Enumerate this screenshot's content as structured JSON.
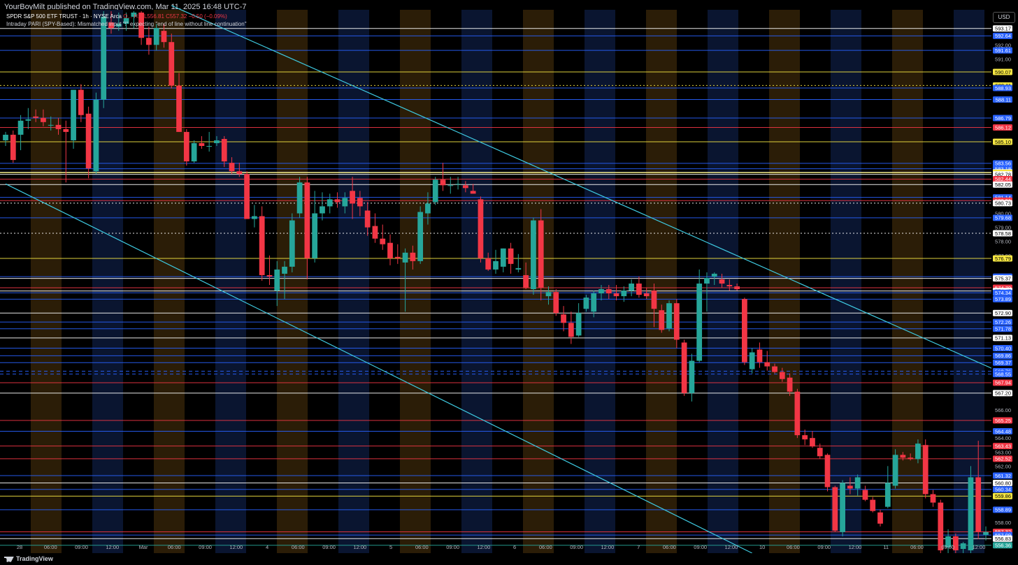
{
  "publisher_line": "YourBoyMilt published on TradingView.com, Mar 11, 2025 16:48 UTC-7",
  "legend": {
    "symbol": "SPDR S&P 500 ETF TRUST · 1h · NYSE Arca",
    "ohlc": "O... H... L556.81 C557.32 −0.50 (−0.09%)",
    "indicator": "Intraday PARI (SPY-Based): Mismatched input \"!\" expecting \"end of line without line continuation\""
  },
  "currency": "USD",
  "branding": "TradingView",
  "colors": {
    "up": "#26a69a",
    "down": "#f23645",
    "trendline": "#3ec9e0",
    "blue_level": "#2962ff",
    "red_level": "#f23645",
    "yellow_level": "#f5e642",
    "white_level": "#ffffff",
    "session_orange": "#2b1d07",
    "session_blue": "#0a1530",
    "axis_text": "#b2b5be"
  },
  "chart_data": {
    "type": "candlestick",
    "symbol": "SPY",
    "interval": "1h",
    "ylim": [
      555.8,
      594.5
    ],
    "x_labels": [
      "28",
      "06:00",
      "09:00",
      "12:00",
      "Mar",
      "06:00",
      "09:00",
      "12:00",
      "4",
      "06:00",
      "09:00",
      "12:00",
      "5",
      "06:00",
      "09:00",
      "12:00",
      "6",
      "06:00",
      "09:00",
      "12:00",
      "7",
      "06:00",
      "09:00",
      "12:00",
      "10",
      "06:00",
      "09:00",
      "12:00",
      "11",
      "06:00",
      "09:00",
      "12:00"
    ],
    "y_ticks": [
      592.0,
      591.0,
      581.0,
      580.0,
      579.0,
      578.0,
      577.0,
      573.0,
      566.0,
      564.0,
      563.0,
      562.0,
      558.0
    ],
    "levels": [
      {
        "price": 593.17,
        "label": "593.17",
        "color": "white"
      },
      {
        "price": 592.64,
        "label": "592.64",
        "color": "blue"
      },
      {
        "price": 591.61,
        "label": "591.61",
        "color": "blue"
      },
      {
        "price": 590.07,
        "label": "590.07",
        "color": "yellow"
      },
      {
        "price": 589.11,
        "label": "589.11",
        "color": "yellow",
        "style": "dotted"
      },
      {
        "price": 588.93,
        "label": "588.93",
        "color": "blue"
      },
      {
        "price": 588.11,
        "label": "588.11",
        "color": "blue"
      },
      {
        "price": 586.79,
        "label": "586.79",
        "color": "blue"
      },
      {
        "price": 586.12,
        "label": "586.12",
        "color": "red"
      },
      {
        "price": 585.1,
        "label": "585.10",
        "color": "yellow"
      },
      {
        "price": 583.56,
        "label": "583.56",
        "color": "blue"
      },
      {
        "price": 583.18,
        "label": "583.18",
        "color": "blue"
      },
      {
        "price": 582.92,
        "label": "582.92",
        "color": "white"
      },
      {
        "price": 582.89,
        "label": "582.89",
        "color": "yellow"
      },
      {
        "price": 582.78,
        "label": "582.78",
        "color": "white"
      },
      {
        "price": 582.44,
        "label": "582.44",
        "color": "red"
      },
      {
        "price": 582.05,
        "label": "582.05",
        "color": "white"
      },
      {
        "price": 581.14,
        "label": "581.14",
        "color": "blue"
      },
      {
        "price": 580.91,
        "label": "580.91",
        "color": "red"
      },
      {
        "price": 580.73,
        "label": "580.73",
        "color": "white",
        "style": "dotted"
      },
      {
        "price": 579.68,
        "label": "579.68",
        "color": "blue"
      },
      {
        "price": 578.58,
        "label": "578.58",
        "color": "white",
        "style": "dotted"
      },
      {
        "price": 576.79,
        "label": "576.79",
        "color": "yellow"
      },
      {
        "price": 575.49,
        "label": "575.49",
        "color": "blue"
      },
      {
        "price": 575.37,
        "label": "575.37",
        "color": "white"
      },
      {
        "price": 574.7,
        "label": "574.70",
        "color": "red"
      },
      {
        "price": 574.47,
        "label": "574.47",
        "color": "white"
      },
      {
        "price": 574.34,
        "label": "574.34",
        "color": "blue"
      },
      {
        "price": 573.89,
        "label": "573.89",
        "color": "blue"
      },
      {
        "price": 572.9,
        "label": "572.90",
        "color": "white"
      },
      {
        "price": 572.26,
        "label": "572.26",
        "color": "blue"
      },
      {
        "price": 571.78,
        "label": "571.78",
        "color": "blue"
      },
      {
        "price": 571.13,
        "label": "571.13",
        "color": "white"
      },
      {
        "price": 570.4,
        "label": "570.40",
        "color": "blue"
      },
      {
        "price": 569.86,
        "label": "569.86",
        "color": "blue"
      },
      {
        "price": 569.37,
        "label": "569.37",
        "color": "blue"
      },
      {
        "price": 568.76,
        "label": "568.76",
        "color": "blue",
        "style": "dashed"
      },
      {
        "price": 568.55,
        "label": "568.55",
        "color": "blue",
        "style": "dashed"
      },
      {
        "price": 567.94,
        "label": "567.94",
        "color": "red"
      },
      {
        "price": 567.2,
        "label": "567.20",
        "color": "white"
      },
      {
        "price": 565.25,
        "label": "565.25",
        "color": "red"
      },
      {
        "price": 564.48,
        "label": "564.48",
        "color": "blue"
      },
      {
        "price": 563.43,
        "label": "563.43",
        "color": "red"
      },
      {
        "price": 562.52,
        "label": "562.52",
        "color": "red"
      },
      {
        "price": 561.32,
        "label": "561.32",
        "color": "blue"
      },
      {
        "price": 560.8,
        "label": "560.80",
        "color": "white"
      },
      {
        "price": 560.34,
        "label": "560.34",
        "color": "blue"
      },
      {
        "price": 559.86,
        "label": "559.86",
        "color": "yellow"
      },
      {
        "price": 558.89,
        "label": "558.89",
        "color": "blue"
      },
      {
        "price": 557.32,
        "label": "557.32",
        "color": "red",
        "note": "11:12"
      },
      {
        "price": 557.09,
        "label": "557.09",
        "color": "blue"
      },
      {
        "price": 556.83,
        "label": "556.83",
        "color": "white"
      },
      {
        "price": 556.36,
        "label": "556.36",
        "color": "up"
      }
    ],
    "candles": [
      {
        "o": 585.2,
        "h": 585.8,
        "l": 584.8,
        "c": 585.6
      },
      {
        "o": 585.6,
        "h": 585.9,
        "l": 583.6,
        "c": 583.8
      },
      {
        "o": 585.6,
        "h": 587.0,
        "l": 584.5,
        "c": 586.6
      },
      {
        "o": 586.6,
        "h": 587.5,
        "l": 586.0,
        "c": 586.7
      },
      {
        "o": 586.9,
        "h": 587.4,
        "l": 586.5,
        "c": 586.8
      },
      {
        "o": 586.8,
        "h": 587.4,
        "l": 586.2,
        "c": 586.5
      },
      {
        "o": 586.3,
        "h": 586.9,
        "l": 585.9,
        "c": 586.3
      },
      {
        "o": 586.3,
        "h": 586.8,
        "l": 585.6,
        "c": 586.0
      },
      {
        "o": 586.0,
        "h": 586.6,
        "l": 582.2,
        "c": 585.8
      },
      {
        "o": 585.2,
        "h": 588.8,
        "l": 584.6,
        "c": 588.8
      },
      {
        "o": 588.8,
        "h": 589.2,
        "l": 586.5,
        "c": 587.0
      },
      {
        "o": 587.1,
        "h": 587.6,
        "l": 582.5,
        "c": 583.2
      },
      {
        "o": 583.0,
        "h": 588.6,
        "l": 582.8,
        "c": 588.1
      },
      {
        "o": 588.1,
        "h": 594.4,
        "l": 587.5,
        "c": 594.0
      },
      {
        "o": 593.6,
        "h": 594.4,
        "l": 592.8,
        "c": 593.2
      },
      {
        "o": 593.3,
        "h": 594.3,
        "l": 593.0,
        "c": 593.5
      },
      {
        "o": 593.5,
        "h": 594.3,
        "l": 593.0,
        "c": 593.9
      },
      {
        "o": 594.0,
        "h": 594.4,
        "l": 593.2,
        "c": 594.3
      },
      {
        "o": 594.3,
        "h": 594.4,
        "l": 592.0,
        "c": 592.5
      },
      {
        "o": 592.5,
        "h": 593.3,
        "l": 591.3,
        "c": 592.0
      },
      {
        "o": 592.0,
        "h": 593.5,
        "l": 591.6,
        "c": 593.2
      },
      {
        "o": 593.0,
        "h": 593.5,
        "l": 591.8,
        "c": 592.2
      },
      {
        "o": 592.2,
        "h": 592.8,
        "l": 588.9,
        "c": 589.1
      },
      {
        "o": 589.1,
        "h": 590.0,
        "l": 585.8,
        "c": 585.8
      },
      {
        "o": 585.8,
        "h": 586.0,
        "l": 583.4,
        "c": 583.7
      },
      {
        "o": 583.7,
        "h": 585.2,
        "l": 583.6,
        "c": 585.0
      },
      {
        "o": 585.0,
        "h": 585.5,
        "l": 584.6,
        "c": 584.8
      },
      {
        "o": 584.8,
        "h": 585.8,
        "l": 584.4,
        "c": 584.8
      },
      {
        "o": 585.0,
        "h": 585.5,
        "l": 584.8,
        "c": 585.2
      },
      {
        "o": 585.3,
        "h": 585.5,
        "l": 583.3,
        "c": 583.7
      },
      {
        "o": 583.6,
        "h": 584.0,
        "l": 582.8,
        "c": 583.0
      },
      {
        "o": 583.0,
        "h": 583.6,
        "l": 582.6,
        "c": 582.8
      },
      {
        "o": 582.8,
        "h": 583.0,
        "l": 579.6,
        "c": 579.6
      },
      {
        "o": 579.6,
        "h": 580.6,
        "l": 579.0,
        "c": 579.8
      },
      {
        "o": 579.8,
        "h": 580.5,
        "l": 575.2,
        "c": 575.6
      },
      {
        "o": 575.6,
        "h": 577.0,
        "l": 574.9,
        "c": 575.5
      },
      {
        "o": 574.5,
        "h": 576.6,
        "l": 573.4,
        "c": 576.0
      },
      {
        "o": 575.7,
        "h": 576.6,
        "l": 573.9,
        "c": 576.2
      },
      {
        "o": 576.2,
        "h": 580.0,
        "l": 575.8,
        "c": 579.5
      },
      {
        "o": 580.0,
        "h": 582.6,
        "l": 579.7,
        "c": 582.2
      },
      {
        "o": 582.2,
        "h": 582.6,
        "l": 575.3,
        "c": 576.8
      },
      {
        "o": 576.8,
        "h": 581.6,
        "l": 576.5,
        "c": 580.0
      },
      {
        "o": 580.0,
        "h": 581.5,
        "l": 579.5,
        "c": 580.5
      },
      {
        "o": 580.5,
        "h": 581.4,
        "l": 580.0,
        "c": 581.0
      },
      {
        "o": 581.0,
        "h": 581.5,
        "l": 580.4,
        "c": 580.8
      },
      {
        "o": 580.5,
        "h": 581.5,
        "l": 580.0,
        "c": 581.1
      },
      {
        "o": 581.6,
        "h": 582.6,
        "l": 579.6,
        "c": 580.7
      },
      {
        "o": 581.1,
        "h": 581.6,
        "l": 579.8,
        "c": 580.5
      },
      {
        "o": 580.2,
        "h": 580.8,
        "l": 578.4,
        "c": 579.0
      },
      {
        "o": 579.1,
        "h": 580.0,
        "l": 577.9,
        "c": 578.2
      },
      {
        "o": 578.2,
        "h": 579.2,
        "l": 577.4,
        "c": 577.8
      },
      {
        "o": 577.9,
        "h": 578.5,
        "l": 576.3,
        "c": 576.8
      },
      {
        "o": 576.9,
        "h": 577.8,
        "l": 576.4,
        "c": 576.8
      },
      {
        "o": 576.5,
        "h": 577.5,
        "l": 573.0,
        "c": 577.2
      },
      {
        "o": 577.2,
        "h": 577.7,
        "l": 576.0,
        "c": 576.6
      },
      {
        "o": 576.6,
        "h": 580.5,
        "l": 576.4,
        "c": 580.1
      },
      {
        "o": 580.0,
        "h": 581.5,
        "l": 579.2,
        "c": 580.7
      },
      {
        "o": 580.8,
        "h": 582.6,
        "l": 580.6,
        "c": 582.4
      },
      {
        "o": 582.4,
        "h": 583.6,
        "l": 581.6,
        "c": 582.0
      },
      {
        "o": 582.0,
        "h": 582.6,
        "l": 581.4,
        "c": 582.0
      },
      {
        "o": 582.1,
        "h": 582.6,
        "l": 581.7,
        "c": 582.1
      },
      {
        "o": 582.0,
        "h": 582.3,
        "l": 581.5,
        "c": 581.8
      },
      {
        "o": 581.6,
        "h": 582.1,
        "l": 581.4,
        "c": 581.4
      },
      {
        "o": 581.0,
        "h": 581.2,
        "l": 576.5,
        "c": 576.8
      },
      {
        "o": 576.8,
        "h": 577.2,
        "l": 575.9,
        "c": 576.0
      },
      {
        "o": 576.0,
        "h": 577.4,
        "l": 575.7,
        "c": 576.6
      },
      {
        "o": 576.2,
        "h": 577.5,
        "l": 575.8,
        "c": 577.5
      },
      {
        "o": 577.5,
        "h": 577.9,
        "l": 575.7,
        "c": 576.4
      },
      {
        "o": 576.0,
        "h": 577.1,
        "l": 575.8,
        "c": 576.1
      },
      {
        "o": 575.6,
        "h": 576.5,
        "l": 574.6,
        "c": 574.7
      },
      {
        "o": 574.6,
        "h": 579.7,
        "l": 574.2,
        "c": 579.5
      },
      {
        "o": 579.5,
        "h": 580.3,
        "l": 573.8,
        "c": 574.7
      },
      {
        "o": 574.1,
        "h": 574.8,
        "l": 573.5,
        "c": 574.4
      },
      {
        "o": 574.4,
        "h": 574.6,
        "l": 572.7,
        "c": 572.9
      },
      {
        "o": 572.8,
        "h": 573.4,
        "l": 571.6,
        "c": 572.2
      },
      {
        "o": 572.2,
        "h": 573.0,
        "l": 570.7,
        "c": 571.2
      },
      {
        "o": 571.3,
        "h": 573.6,
        "l": 571.2,
        "c": 572.9
      },
      {
        "o": 573.2,
        "h": 574.2,
        "l": 573.0,
        "c": 574.0
      },
      {
        "o": 573.0,
        "h": 574.5,
        "l": 572.6,
        "c": 574.3
      },
      {
        "o": 574.3,
        "h": 574.9,
        "l": 573.8,
        "c": 574.6
      },
      {
        "o": 574.6,
        "h": 574.9,
        "l": 573.9,
        "c": 574.3
      },
      {
        "o": 574.3,
        "h": 574.9,
        "l": 573.8,
        "c": 574.1
      },
      {
        "o": 574.1,
        "h": 574.8,
        "l": 573.7,
        "c": 574.5
      },
      {
        "o": 574.5,
        "h": 575.3,
        "l": 574.1,
        "c": 575.0
      },
      {
        "o": 575.0,
        "h": 575.5,
        "l": 574.0,
        "c": 574.2
      },
      {
        "o": 574.3,
        "h": 574.7,
        "l": 573.9,
        "c": 574.1
      },
      {
        "o": 574.5,
        "h": 575.0,
        "l": 571.9,
        "c": 573.2
      },
      {
        "o": 573.1,
        "h": 573.5,
        "l": 571.5,
        "c": 571.7
      },
      {
        "o": 571.8,
        "h": 573.8,
        "l": 571.6,
        "c": 573.6
      },
      {
        "o": 573.6,
        "h": 573.9,
        "l": 570.4,
        "c": 571.0
      },
      {
        "o": 570.8,
        "h": 571.0,
        "l": 567.0,
        "c": 567.2
      },
      {
        "o": 567.2,
        "h": 570.0,
        "l": 566.6,
        "c": 569.5
      },
      {
        "o": 569.5,
        "h": 576.0,
        "l": 569.4,
        "c": 575.0
      },
      {
        "o": 575.0,
        "h": 575.8,
        "l": 573.0,
        "c": 575.4
      },
      {
        "o": 575.5,
        "h": 575.8,
        "l": 574.9,
        "c": 575.7
      },
      {
        "o": 575.3,
        "h": 575.7,
        "l": 574.7,
        "c": 575.0
      },
      {
        "o": 574.9,
        "h": 575.3,
        "l": 574.5,
        "c": 574.8
      },
      {
        "o": 574.8,
        "h": 575.0,
        "l": 574.5,
        "c": 574.6
      },
      {
        "o": 573.9,
        "h": 574.0,
        "l": 569.2,
        "c": 569.4
      },
      {
        "o": 568.9,
        "h": 570.4,
        "l": 568.6,
        "c": 570.1
      },
      {
        "o": 570.3,
        "h": 570.8,
        "l": 569.0,
        "c": 569.4
      },
      {
        "o": 569.4,
        "h": 570.2,
        "l": 568.8,
        "c": 569.1
      },
      {
        "o": 569.1,
        "h": 569.3,
        "l": 568.6,
        "c": 568.7
      },
      {
        "o": 568.7,
        "h": 569.0,
        "l": 568.0,
        "c": 568.2
      },
      {
        "o": 568.3,
        "h": 568.6,
        "l": 567.0,
        "c": 567.3
      },
      {
        "o": 567.3,
        "h": 567.5,
        "l": 564.0,
        "c": 564.2
      },
      {
        "o": 564.2,
        "h": 564.6,
        "l": 563.5,
        "c": 563.9
      },
      {
        "o": 564.0,
        "h": 564.5,
        "l": 563.3,
        "c": 563.4
      },
      {
        "o": 563.3,
        "h": 563.6,
        "l": 562.5,
        "c": 562.7
      },
      {
        "o": 562.8,
        "h": 562.9,
        "l": 560.2,
        "c": 560.5
      },
      {
        "o": 560.5,
        "h": 560.6,
        "l": 557.3,
        "c": 557.4
      },
      {
        "o": 557.3,
        "h": 561.0,
        "l": 557.0,
        "c": 560.8
      },
      {
        "o": 560.6,
        "h": 561.2,
        "l": 560.0,
        "c": 560.4
      },
      {
        "o": 560.4,
        "h": 561.4,
        "l": 559.9,
        "c": 561.2
      },
      {
        "o": 560.3,
        "h": 560.6,
        "l": 559.5,
        "c": 559.6
      },
      {
        "o": 559.6,
        "h": 559.8,
        "l": 558.7,
        "c": 558.8
      },
      {
        "o": 558.7,
        "h": 558.9,
        "l": 557.7,
        "c": 557.9
      },
      {
        "o": 559.1,
        "h": 562.0,
        "l": 559.0,
        "c": 560.8
      },
      {
        "o": 560.6,
        "h": 563.2,
        "l": 560.4,
        "c": 562.8
      },
      {
        "o": 562.8,
        "h": 563.0,
        "l": 562.4,
        "c": 562.6
      },
      {
        "o": 562.6,
        "h": 562.9,
        "l": 562.4,
        "c": 562.5
      },
      {
        "o": 562.5,
        "h": 563.9,
        "l": 562.2,
        "c": 563.6
      },
      {
        "o": 563.5,
        "h": 563.9,
        "l": 559.7,
        "c": 560.0
      },
      {
        "o": 560.0,
        "h": 560.3,
        "l": 559.1,
        "c": 559.4
      },
      {
        "o": 559.4,
        "h": 559.6,
        "l": 555.8,
        "c": 556.0
      },
      {
        "o": 556.2,
        "h": 557.5,
        "l": 555.8,
        "c": 557.0
      },
      {
        "o": 557.0,
        "h": 557.2,
        "l": 555.8,
        "c": 556.0
      },
      {
        "o": 556.1,
        "h": 556.6,
        "l": 555.8,
        "c": 556.5
      },
      {
        "o": 556.0,
        "h": 562.0,
        "l": 555.8,
        "c": 561.2
      },
      {
        "o": 561.2,
        "h": 563.8,
        "l": 556.8,
        "c": 557.3
      },
      {
        "o": 557.1,
        "h": 557.7,
        "l": 556.7,
        "c": 557.3
      }
    ],
    "trendlines": [
      {
        "from": {
          "i": 22,
          "p": 594.8
        },
        "to": {
          "i": 142,
          "p": 566.3
        }
      },
      {
        "from": {
          "i": 0,
          "p": 582.1
        },
        "to": {
          "i": 99,
          "p": 555.8
        }
      }
    ],
    "grid": false,
    "legend_position": "top-left"
  }
}
